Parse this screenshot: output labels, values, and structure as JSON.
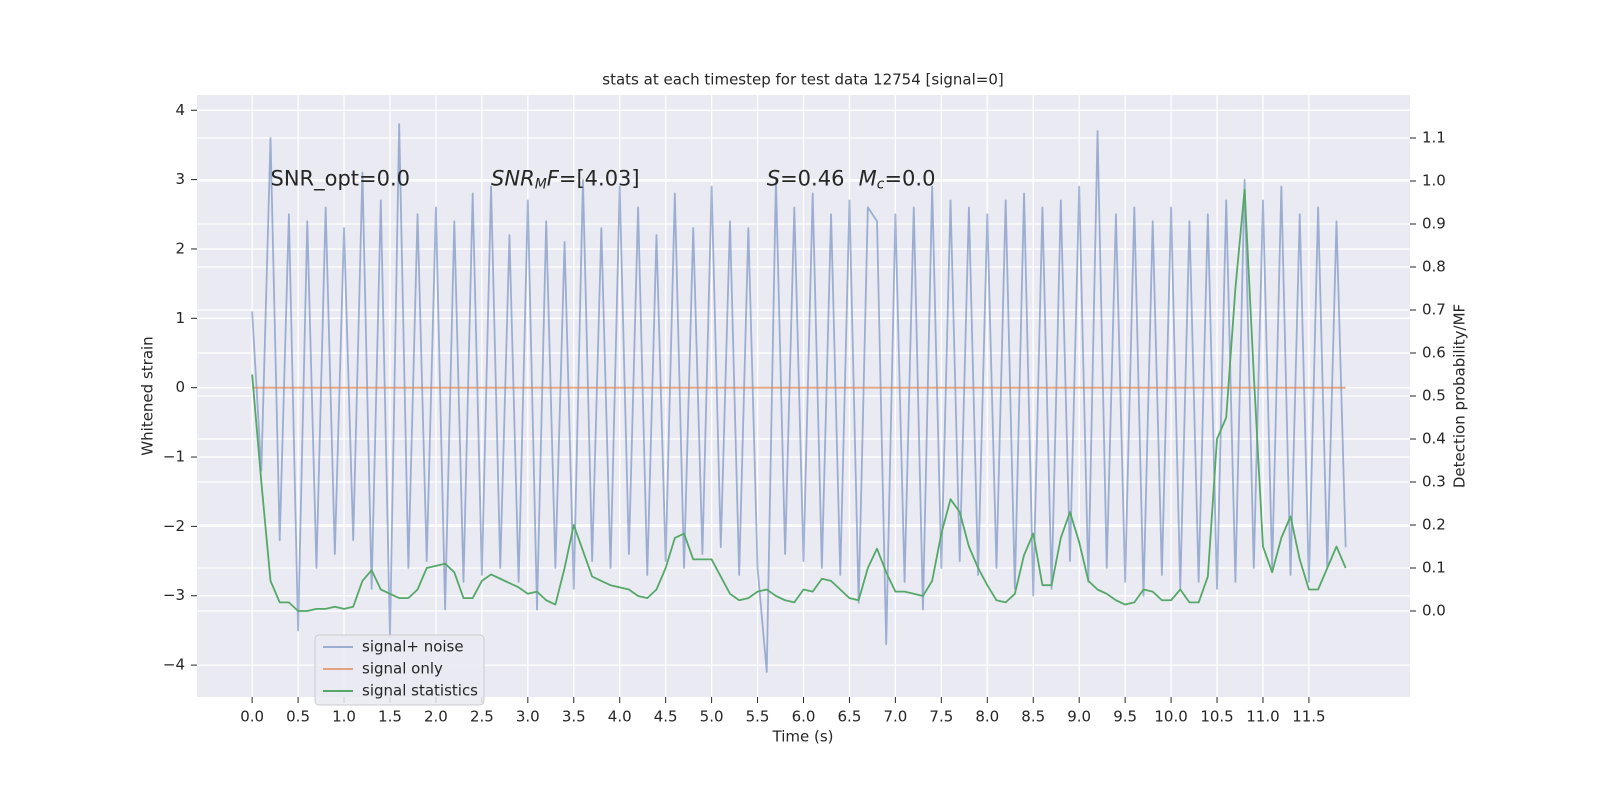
{
  "chart_data": {
    "type": "line",
    "title": "stats at each timestep for test data 12754 [signal=0]",
    "xlabel": "Time (s)",
    "ylabel": "Whitened strain",
    "y2label": "Detection probability/MF",
    "annotations": [
      {
        "parts": [
          {
            "text": "SNR_opt=0.0"
          }
        ]
      },
      {
        "parts": [
          {
            "text": "SNR",
            "italic": true
          },
          {
            "text": "M",
            "italic": true,
            "sub": true
          },
          {
            "text": "F",
            "italic": true
          },
          {
            "text": "=[4.03]"
          }
        ]
      },
      {
        "parts": [
          {
            "text": "S",
            "italic": true
          },
          {
            "text": "=0.46"
          }
        ]
      },
      {
        "parts": [
          {
            "text": "M",
            "italic": true
          },
          {
            "text": "c",
            "italic": true,
            "sub": true
          },
          {
            "text": "=0.0"
          }
        ]
      }
    ],
    "x": [
      0,
      0.1,
      0.2,
      0.3,
      0.4,
      0.5,
      0.6,
      0.7,
      0.8,
      0.9,
      1,
      1.1,
      1.2,
      1.3,
      1.4,
      1.5,
      1.6,
      1.7,
      1.8,
      1.9,
      2,
      2.1,
      2.2,
      2.3,
      2.4,
      2.5,
      2.6,
      2.7,
      2.8,
      2.9,
      3,
      3.1,
      3.2,
      3.3,
      3.4,
      3.5,
      3.6,
      3.7,
      3.8,
      3.9,
      4,
      4.1,
      4.2,
      4.3,
      4.4,
      4.5,
      4.6,
      4.7,
      4.8,
      4.9,
      5,
      5.1,
      5.2,
      5.3,
      5.4,
      5.5,
      5.6,
      5.7,
      5.8,
      5.9,
      6,
      6.1,
      6.2,
      6.3,
      6.4,
      6.5,
      6.6,
      6.7,
      6.8,
      6.9,
      7,
      7.1,
      7.2,
      7.3,
      7.4,
      7.5,
      7.6,
      7.7,
      7.8,
      7.9,
      8,
      8.1,
      8.2,
      8.3,
      8.4,
      8.5,
      8.6,
      8.7,
      8.8,
      8.9,
      9,
      9.1,
      9.2,
      9.3,
      9.4,
      9.5,
      9.6,
      9.7,
      9.8,
      9.9,
      10,
      10.1,
      10.2,
      10.3,
      10.4,
      10.5,
      10.6,
      10.7,
      10.8,
      10.9,
      11,
      11.1,
      11.2,
      11.3,
      11.4,
      11.5,
      11.6,
      11.7,
      11.8,
      11.9
    ],
    "series": [
      {
        "name": "signal+ noise",
        "color": "#4c72b0",
        "opacity": 0.5,
        "values": [
          1.1,
          -1.2,
          3.6,
          -2.2,
          2.5,
          -3.5,
          2.4,
          -2.6,
          2.6,
          -2.4,
          2.3,
          -2.2,
          3.1,
          -2.9,
          2.7,
          -3.6,
          3.8,
          -2.6,
          2.5,
          -2.5,
          2.6,
          -3.2,
          2.4,
          -2.8,
          2.8,
          -2.7,
          2.9,
          -2.6,
          2.2,
          -2.8,
          2.7,
          -3.2,
          2.4,
          -2.6,
          2.1,
          -2.9,
          3.0,
          -2.5,
          2.3,
          -2.6,
          2.9,
          -2.4,
          2.6,
          -2.7,
          2.2,
          -2.5,
          2.8,
          -2.6,
          2.3,
          -2.4,
          2.9,
          -2.3,
          2.4,
          -2.7,
          2.3,
          -2.6,
          -4.1,
          3.0,
          -2.4,
          2.6,
          -2.5,
          2.8,
          -2.6,
          2.5,
          -2.7,
          2.7,
          -3.1,
          2.6,
          2.4,
          -3.7,
          2.5,
          -2.8,
          2.6,
          -3.2,
          2.9,
          -2.6,
          2.7,
          -2.5,
          2.6,
          -2.7,
          2.5,
          -2.6,
          2.7,
          -2.9,
          2.8,
          -3.0,
          2.6,
          -2.9,
          2.7,
          -2.5,
          2.9,
          -2.8,
          3.7,
          -2.6,
          2.5,
          -2.8,
          2.6,
          -3.0,
          2.4,
          -2.7,
          2.6,
          -2.9,
          2.4,
          -2.8,
          2.5,
          -2.9,
          2.7,
          -2.8,
          3.0,
          -2.6,
          2.7,
          -2.6,
          2.9,
          -2.7,
          2.5,
          -2.8,
          2.6,
          -2.6,
          2.4,
          -2.3
        ]
      },
      {
        "name": "signal only",
        "color": "#dd8452",
        "opacity": 0.7,
        "values": [
          0,
          0,
          0,
          0,
          0,
          0,
          0,
          0,
          0,
          0,
          0,
          0,
          0,
          0,
          0,
          0,
          0,
          0,
          0,
          0,
          0,
          0,
          0,
          0,
          0,
          0,
          0,
          0,
          0,
          0,
          0,
          0,
          0,
          0,
          0,
          0,
          0,
          0,
          0,
          0,
          0,
          0,
          0,
          0,
          0,
          0,
          0,
          0,
          0,
          0,
          0,
          0,
          0,
          0,
          0,
          0,
          0,
          0,
          0,
          0,
          0,
          0,
          0,
          0,
          0,
          0,
          0,
          0,
          0,
          0,
          0,
          0,
          0,
          0,
          0,
          0,
          0,
          0,
          0,
          0,
          0,
          0,
          0,
          0,
          0,
          0,
          0,
          0,
          0,
          0,
          0,
          0,
          0,
          0,
          0,
          0,
          0,
          0,
          0,
          0,
          0,
          0,
          0,
          0,
          0,
          0,
          0,
          0,
          0,
          0,
          0,
          0,
          0,
          0,
          0,
          0,
          0,
          0,
          0,
          0
        ]
      },
      {
        "name": "signal statistics",
        "color": "#55a868",
        "opacity": 1,
        "axis": "y2",
        "values": [
          0.55,
          0.3,
          0.07,
          0.02,
          0.02,
          0.0,
          0.0,
          0.005,
          0.005,
          0.01,
          0.005,
          0.01,
          0.07,
          0.095,
          0.05,
          0.04,
          0.03,
          0.03,
          0.05,
          0.1,
          0.105,
          0.11,
          0.09,
          0.03,
          0.03,
          0.07,
          0.085,
          0.075,
          0.065,
          0.055,
          0.04,
          0.045,
          0.025,
          0.015,
          0.1,
          0.2,
          0.14,
          0.08,
          0.07,
          0.06,
          0.055,
          0.05,
          0.035,
          0.03,
          0.05,
          0.1,
          0.17,
          0.18,
          0.12,
          0.12,
          0.12,
          0.08,
          0.04,
          0.025,
          0.03,
          0.045,
          0.05,
          0.035,
          0.025,
          0.02,
          0.05,
          0.045,
          0.075,
          0.07,
          0.05,
          0.03,
          0.025,
          0.1,
          0.145,
          0.09,
          0.045,
          0.045,
          0.04,
          0.035,
          0.07,
          0.18,
          0.26,
          0.23,
          0.15,
          0.1,
          0.06,
          0.025,
          0.02,
          0.04,
          0.13,
          0.18,
          0.06,
          0.06,
          0.17,
          0.23,
          0.16,
          0.07,
          0.05,
          0.04,
          0.025,
          0.015,
          0.02,
          0.05,
          0.045,
          0.025,
          0.025,
          0.05,
          0.02,
          0.02,
          0.08,
          0.4,
          0.45,
          0.75,
          0.98,
          0.55,
          0.15,
          0.09,
          0.17,
          0.22,
          0.12,
          0.05,
          0.05,
          0.1,
          0.15,
          0.1
        ]
      }
    ],
    "xlim": [
      -0.6,
      12.6
    ],
    "xticks": [
      {
        "value": 0,
        "label": "0.0"
      },
      0.5,
      {
        "value": 1,
        "label": "1.0"
      },
      1.5,
      {
        "value": 2,
        "label": "2.0"
      },
      2.5,
      {
        "value": 3,
        "label": "3.0"
      },
      3.5,
      {
        "value": 4,
        "label": "4.0"
      },
      4.5,
      {
        "value": 5,
        "label": "5.0"
      },
      5.5,
      {
        "value": 6,
        "label": "6.0"
      },
      6.5,
      {
        "value": 7,
        "label": "7.0"
      },
      7.5,
      {
        "value": 8,
        "label": "8.0"
      },
      8.5,
      {
        "value": 9,
        "label": "9.0"
      },
      9.5,
      {
        "value": 10,
        "label": "10.0"
      },
      10.5,
      {
        "value": 11,
        "label": "11.0"
      },
      11.5
    ],
    "ylim": [
      -4.46,
      4.22
    ],
    "yticks": [
      {
        "value": -4,
        "label": "−4"
      },
      {
        "value": -3,
        "label": "−3"
      },
      {
        "value": -2,
        "label": "−2"
      },
      {
        "value": -1,
        "label": "−1"
      },
      0,
      1,
      2,
      3,
      4
    ],
    "y2lim": [
      -0.2,
      1.2
    ],
    "y2ticks": [
      {
        "value": 0,
        "label": "0.0"
      },
      0.1,
      0.2,
      0.3,
      0.4,
      0.5,
      0.6,
      0.7,
      0.8,
      0.9,
      {
        "value": 1,
        "label": "1.0"
      },
      1.1
    ],
    "grid": true,
    "background": "#eaeaf2",
    "legend": "lower left"
  }
}
